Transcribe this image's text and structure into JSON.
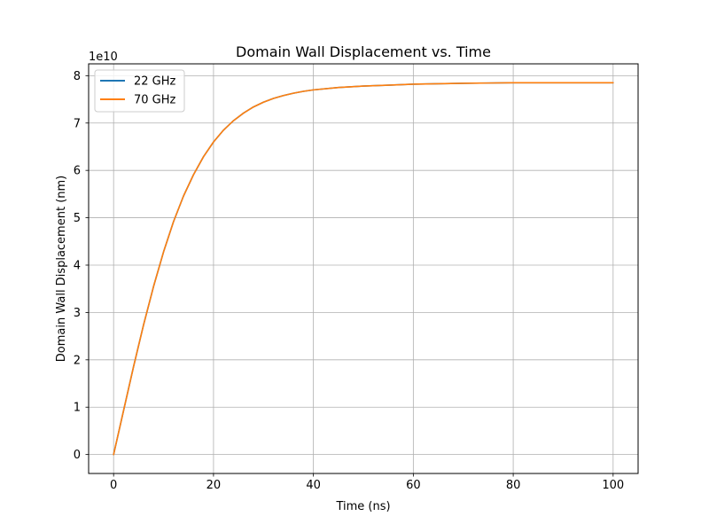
{
  "chart_data": {
    "type": "line",
    "title": "Domain Wall Displacement vs. Time",
    "xlabel": "Time (ns)",
    "ylabel": "Domain Wall Displacement (nm)",
    "y_offset_label": "1e10",
    "y_scale_factor": 10000000000,
    "xlim": [
      -5,
      105
    ],
    "ylim": [
      -0.4,
      8.25
    ],
    "x_ticks": [
      0,
      20,
      40,
      60,
      80,
      100
    ],
    "x_tick_labels": [
      "0",
      "20",
      "40",
      "60",
      "80",
      "100"
    ],
    "y_ticks": [
      0,
      1,
      2,
      3,
      4,
      5,
      6,
      7,
      8
    ],
    "y_tick_labels": [
      "0",
      "1",
      "2",
      "3",
      "4",
      "5",
      "6",
      "7",
      "8"
    ],
    "grid": true,
    "legend_position": "top-left",
    "x": [
      0,
      2,
      4,
      6,
      8,
      10,
      12,
      14,
      16,
      18,
      20,
      22,
      24,
      26,
      28,
      30,
      32,
      34,
      36,
      38,
      40,
      45,
      50,
      55,
      60,
      65,
      70,
      75,
      80,
      85,
      90,
      95,
      100
    ],
    "series": [
      {
        "name": "22 GHz",
        "color": "#1f77b4",
        "values": [
          0,
          0.93,
          1.86,
          2.74,
          3.55,
          4.28,
          4.92,
          5.46,
          5.91,
          6.29,
          6.6,
          6.85,
          7.05,
          7.21,
          7.34,
          7.44,
          7.52,
          7.58,
          7.63,
          7.67,
          7.7,
          7.75,
          7.78,
          7.8,
          7.82,
          7.83,
          7.84,
          7.845,
          7.85,
          7.85,
          7.85,
          7.85,
          7.85
        ]
      },
      {
        "name": "70 GHz",
        "color": "#ff7f0e",
        "values": [
          0,
          0.93,
          1.86,
          2.74,
          3.55,
          4.28,
          4.92,
          5.46,
          5.91,
          6.29,
          6.6,
          6.85,
          7.05,
          7.21,
          7.34,
          7.44,
          7.52,
          7.58,
          7.63,
          7.67,
          7.7,
          7.75,
          7.78,
          7.8,
          7.82,
          7.83,
          7.84,
          7.845,
          7.85,
          7.85,
          7.85,
          7.85,
          7.85
        ]
      }
    ]
  }
}
